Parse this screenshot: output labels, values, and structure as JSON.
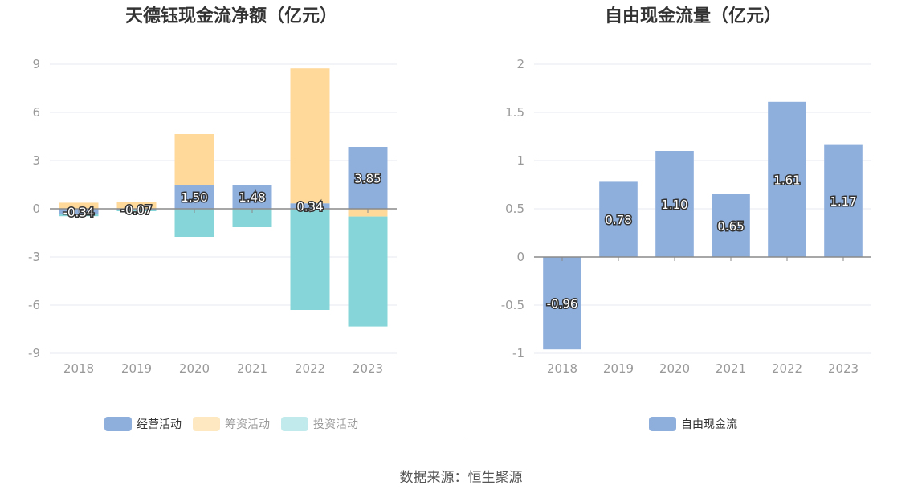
{
  "chart_data": [
    {
      "type": "bar",
      "title": "天德钰现金流净额（亿元）",
      "categories": [
        "2018",
        "2019",
        "2020",
        "2021",
        "2022",
        "2023"
      ],
      "ylim": [
        -9,
        9
      ],
      "yticks": [
        9,
        6,
        3,
        0,
        -3,
        -6,
        -9
      ],
      "stacked": true,
      "grid": true,
      "legend_position": "bottom",
      "series": [
        {
          "name": "经营活动",
          "color": "#8eaedc",
          "values": [
            -0.34,
            -0.07,
            1.5,
            1.48,
            0.34,
            3.85
          ]
        },
        {
          "name": "筹资活动",
          "color": "#ffd99a",
          "values": [
            0.38,
            0.45,
            3.15,
            0.0,
            8.4,
            -0.48
          ]
        },
        {
          "name": "投资活动",
          "color": "#86d6d9",
          "values": [
            -0.12,
            -0.08,
            -1.75,
            -1.15,
            -6.3,
            -6.85
          ]
        }
      ],
      "data_labels": [
        "-0.34",
        "-0.07",
        "1.50",
        "1.48",
        "0.34",
        "3.85"
      ],
      "legend_swatch_colors": [
        "#8eaedc",
        "#fde8c2",
        "#c0eaec"
      ]
    },
    {
      "type": "bar",
      "title": "自由现金流量（亿元）",
      "categories": [
        "2018",
        "2019",
        "2020",
        "2021",
        "2022",
        "2023"
      ],
      "ylim": [
        -1,
        2
      ],
      "yticks": [
        2,
        1.5,
        1,
        0.5,
        0,
        -0.5,
        -1
      ],
      "grid": true,
      "legend_position": "bottom",
      "series": [
        {
          "name": "自由现金流",
          "color": "#8eaedc",
          "values": [
            -0.96,
            0.78,
            1.1,
            0.65,
            1.61,
            1.17
          ]
        }
      ],
      "data_labels": [
        "-0.96",
        "0.78",
        "1.10",
        "0.65",
        "1.61",
        "1.17"
      ]
    }
  ],
  "footer": {
    "source": "数据来源：恒生聚源"
  }
}
